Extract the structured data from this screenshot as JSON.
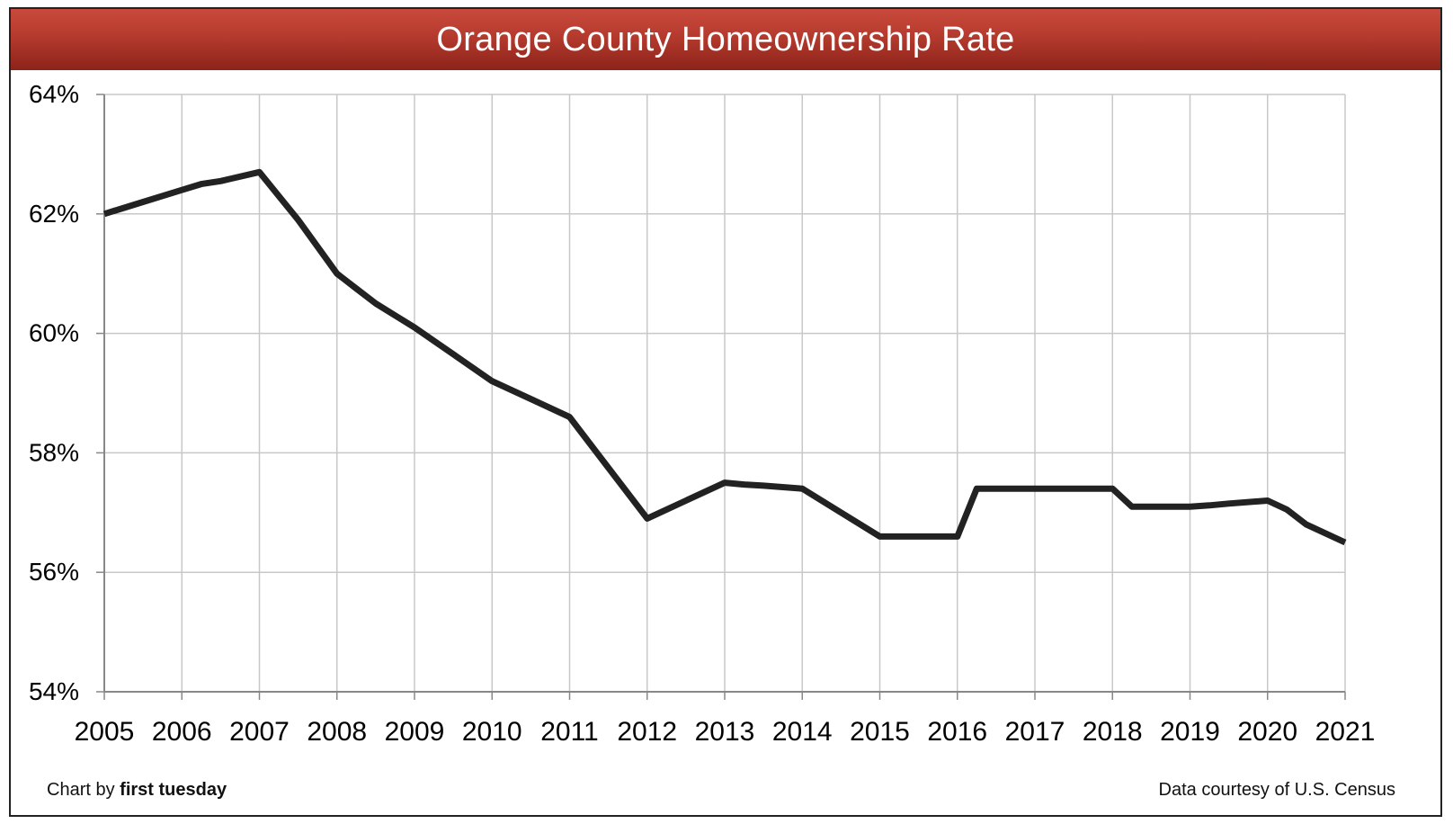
{
  "chart_data": {
    "type": "line",
    "title": "Orange County Homeownership Rate",
    "xlabel": "",
    "ylabel": "",
    "x_ticks": [
      "2005",
      "2006",
      "2007",
      "2008",
      "2009",
      "2010",
      "2011",
      "2012",
      "2013",
      "2014",
      "2015",
      "2016",
      "2017",
      "2018",
      "2019",
      "2020",
      "2021"
    ],
    "y_ticks": [
      "64%",
      "62%",
      "60%",
      "58%",
      "56%",
      "54%"
    ],
    "xlim": [
      2005,
      2021
    ],
    "ylim": [
      54,
      64
    ],
    "grid": true,
    "series": [
      {
        "x": [
          2005,
          2005.5,
          2006,
          2006.25,
          2006.5,
          2007,
          2007.5,
          2008,
          2008.25,
          2008.5,
          2008.75,
          2009,
          2009.5,
          2010,
          2010.5,
          2011,
          2011.5,
          2012,
          2012.5,
          2013,
          2013.25,
          2013.5,
          2014,
          2014.5,
          2015,
          2015.5,
          2016,
          2016.25,
          2016.5,
          2017,
          2017.5,
          2018,
          2018.25,
          2018.5,
          2019,
          2019.25,
          2019.5,
          2020,
          2020.25,
          2020.5,
          2021
        ],
        "y": [
          62.0,
          62.2,
          62.4,
          62.5,
          62.55,
          62.7,
          61.9,
          61.0,
          60.75,
          60.5,
          60.3,
          60.1,
          59.65,
          59.2,
          58.9,
          58.6,
          57.75,
          56.9,
          57.2,
          57.5,
          57.47,
          57.45,
          57.4,
          57.0,
          56.6,
          56.6,
          56.6,
          57.4,
          57.4,
          57.4,
          57.4,
          57.4,
          57.1,
          57.1,
          57.1,
          57.12,
          57.15,
          57.2,
          57.05,
          56.8,
          56.5
        ],
        "color": "#222222"
      }
    ]
  },
  "footer": {
    "credit_prefix": "Chart by ",
    "credit_name": "first tuesday",
    "source": "Data courtesy of U.S. Census"
  },
  "colors": {
    "title_bar": "#b53a2e",
    "line": "#222222",
    "grid": "#c8c8c8",
    "axis": "#888888"
  }
}
